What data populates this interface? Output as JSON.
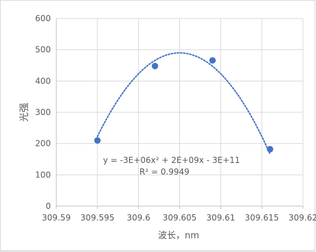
{
  "chart_data": {
    "type": "scatter",
    "title": "",
    "xlabel": "波长，nm",
    "ylabel": "光强",
    "xlim": [
      309.59,
      309.62
    ],
    "ylim": [
      0,
      600
    ],
    "x_ticks": [
      "309.59",
      "309.595",
      "309.6",
      "309.605",
      "309.61",
      "309.615",
      "309.62"
    ],
    "y_ticks": [
      "0",
      "100",
      "200",
      "300",
      "400",
      "500",
      "600"
    ],
    "grid": true,
    "legend": "none",
    "series": [
      {
        "name": "",
        "color": "#4472c4",
        "points": [
          {
            "x": 309.595,
            "y": 210
          },
          {
            "x": 309.602,
            "y": 448
          },
          {
            "x": 309.609,
            "y": 466
          },
          {
            "x": 309.616,
            "y": 182
          }
        ]
      }
    ],
    "trendline": {
      "type": "polynomial",
      "order": 2,
      "style": "dotted",
      "color": "#4472c4",
      "vertex": {
        "x": 309.605,
        "y": 490
      },
      "equation_label": "y = -3E+06x² + 2E+09x - 3E+11",
      "r2_label": "R² = 0.9949"
    }
  }
}
